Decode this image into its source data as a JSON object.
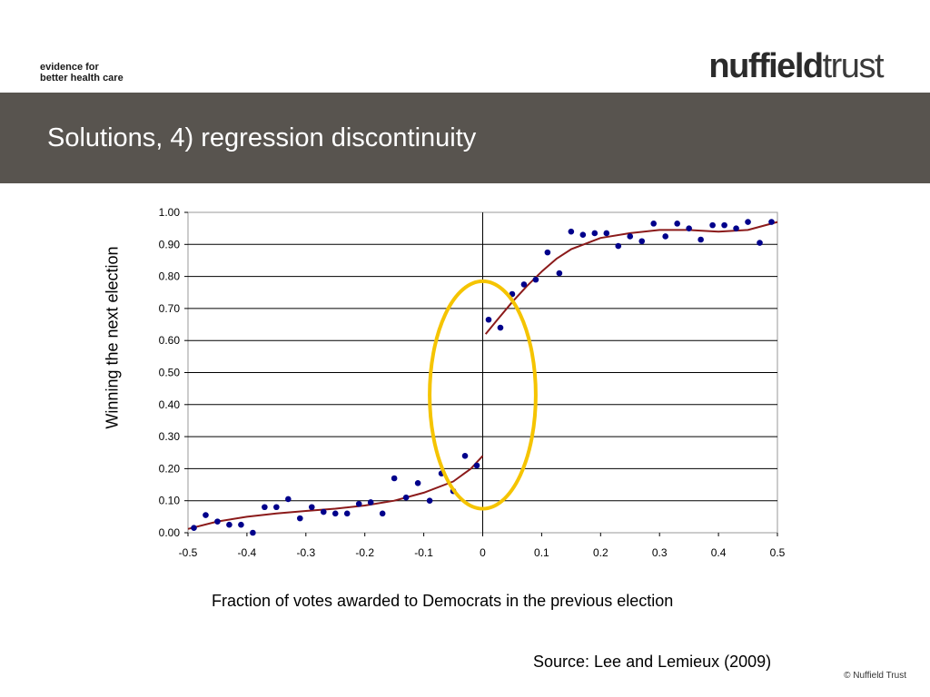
{
  "header": {
    "tagline_line1": "evidence for",
    "tagline_line2": "better health care",
    "logo_bold": "nuffield",
    "logo_light": "trust",
    "title": "Solutions, 4) regression discontinuity"
  },
  "footer": {
    "source": "Source: Lee and Lemieux  (2009)",
    "copyright": "© Nuffield Trust"
  },
  "colors": {
    "title_bar": "#58544f",
    "points": "#00008b",
    "fit_line": "#8b1a1a",
    "highlight_ellipse": "#f5c400"
  },
  "chart_data": {
    "type": "scatter",
    "xlabel": "Fraction of votes awarded to Democrats in the previous election",
    "ylabel": "Winning  the next election",
    "xlim": [
      -0.5,
      0.5
    ],
    "ylim": [
      0,
      1
    ],
    "x_ticks": [
      "-0.5",
      "-0.4",
      "-0.3",
      "-0.2",
      "-0.1",
      "0",
      "0.1",
      "0.2",
      "0.3",
      "0.4",
      "0.5"
    ],
    "y_ticks": [
      "0.00",
      "0.10",
      "0.20",
      "0.30",
      "0.40",
      "0.50",
      "0.60",
      "0.70",
      "0.80",
      "0.90",
      "1.00"
    ],
    "grid": "horizontal",
    "cutoff_line_x": 0,
    "points": [
      {
        "x": -0.49,
        "y": 0.015
      },
      {
        "x": -0.47,
        "y": 0.055
      },
      {
        "x": -0.45,
        "y": 0.035
      },
      {
        "x": -0.43,
        "y": 0.025
      },
      {
        "x": -0.41,
        "y": 0.025
      },
      {
        "x": -0.39,
        "y": 0.0
      },
      {
        "x": -0.37,
        "y": 0.08
      },
      {
        "x": -0.35,
        "y": 0.08
      },
      {
        "x": -0.33,
        "y": 0.105
      },
      {
        "x": -0.31,
        "y": 0.045
      },
      {
        "x": -0.29,
        "y": 0.08
      },
      {
        "x": -0.27,
        "y": 0.065
      },
      {
        "x": -0.25,
        "y": 0.06
      },
      {
        "x": -0.23,
        "y": 0.06
      },
      {
        "x": -0.21,
        "y": 0.09
      },
      {
        "x": -0.19,
        "y": 0.095
      },
      {
        "x": -0.17,
        "y": 0.06
      },
      {
        "x": -0.15,
        "y": 0.17
      },
      {
        "x": -0.13,
        "y": 0.11
      },
      {
        "x": -0.11,
        "y": 0.155
      },
      {
        "x": -0.09,
        "y": 0.1
      },
      {
        "x": -0.07,
        "y": 0.185
      },
      {
        "x": -0.05,
        "y": 0.13
      },
      {
        "x": -0.03,
        "y": 0.24
      },
      {
        "x": -0.01,
        "y": 0.21
      },
      {
        "x": 0.01,
        "y": 0.665
      },
      {
        "x": 0.03,
        "y": 0.64
      },
      {
        "x": 0.05,
        "y": 0.745
      },
      {
        "x": 0.07,
        "y": 0.775
      },
      {
        "x": 0.09,
        "y": 0.79
      },
      {
        "x": 0.11,
        "y": 0.875
      },
      {
        "x": 0.13,
        "y": 0.81
      },
      {
        "x": 0.15,
        "y": 0.94
      },
      {
        "x": 0.17,
        "y": 0.93
      },
      {
        "x": 0.19,
        "y": 0.935
      },
      {
        "x": 0.21,
        "y": 0.935
      },
      {
        "x": 0.23,
        "y": 0.895
      },
      {
        "x": 0.25,
        "y": 0.925
      },
      {
        "x": 0.27,
        "y": 0.91
      },
      {
        "x": 0.29,
        "y": 0.965
      },
      {
        "x": 0.31,
        "y": 0.925
      },
      {
        "x": 0.33,
        "y": 0.965
      },
      {
        "x": 0.35,
        "y": 0.95
      },
      {
        "x": 0.37,
        "y": 0.915
      },
      {
        "x": 0.39,
        "y": 0.96
      },
      {
        "x": 0.41,
        "y": 0.96
      },
      {
        "x": 0.43,
        "y": 0.95
      },
      {
        "x": 0.45,
        "y": 0.97
      },
      {
        "x": 0.47,
        "y": 0.905
      },
      {
        "x": 0.49,
        "y": 0.97
      }
    ],
    "fit_left": [
      {
        "x": -0.5,
        "y": 0.012
      },
      {
        "x": -0.45,
        "y": 0.035
      },
      {
        "x": -0.4,
        "y": 0.05
      },
      {
        "x": -0.35,
        "y": 0.06
      },
      {
        "x": -0.3,
        "y": 0.068
      },
      {
        "x": -0.25,
        "y": 0.075
      },
      {
        "x": -0.2,
        "y": 0.085
      },
      {
        "x": -0.15,
        "y": 0.1
      },
      {
        "x": -0.1,
        "y": 0.125
      },
      {
        "x": -0.05,
        "y": 0.16
      },
      {
        "x": -0.02,
        "y": 0.2
      },
      {
        "x": 0.0,
        "y": 0.24
      }
    ],
    "fit_right": [
      {
        "x": 0.005,
        "y": 0.62
      },
      {
        "x": 0.025,
        "y": 0.665
      },
      {
        "x": 0.05,
        "y": 0.72
      },
      {
        "x": 0.075,
        "y": 0.77
      },
      {
        "x": 0.1,
        "y": 0.815
      },
      {
        "x": 0.125,
        "y": 0.855
      },
      {
        "x": 0.15,
        "y": 0.885
      },
      {
        "x": 0.2,
        "y": 0.92
      },
      {
        "x": 0.25,
        "y": 0.935
      },
      {
        "x": 0.3,
        "y": 0.945
      },
      {
        "x": 0.35,
        "y": 0.945
      },
      {
        "x": 0.4,
        "y": 0.94
      },
      {
        "x": 0.45,
        "y": 0.945
      },
      {
        "x": 0.5,
        "y": 0.97
      }
    ],
    "highlight": {
      "shape": "ellipse",
      "center_x": 0.0,
      "center_y": 0.43,
      "rx": 0.09,
      "ry": 0.355
    }
  }
}
